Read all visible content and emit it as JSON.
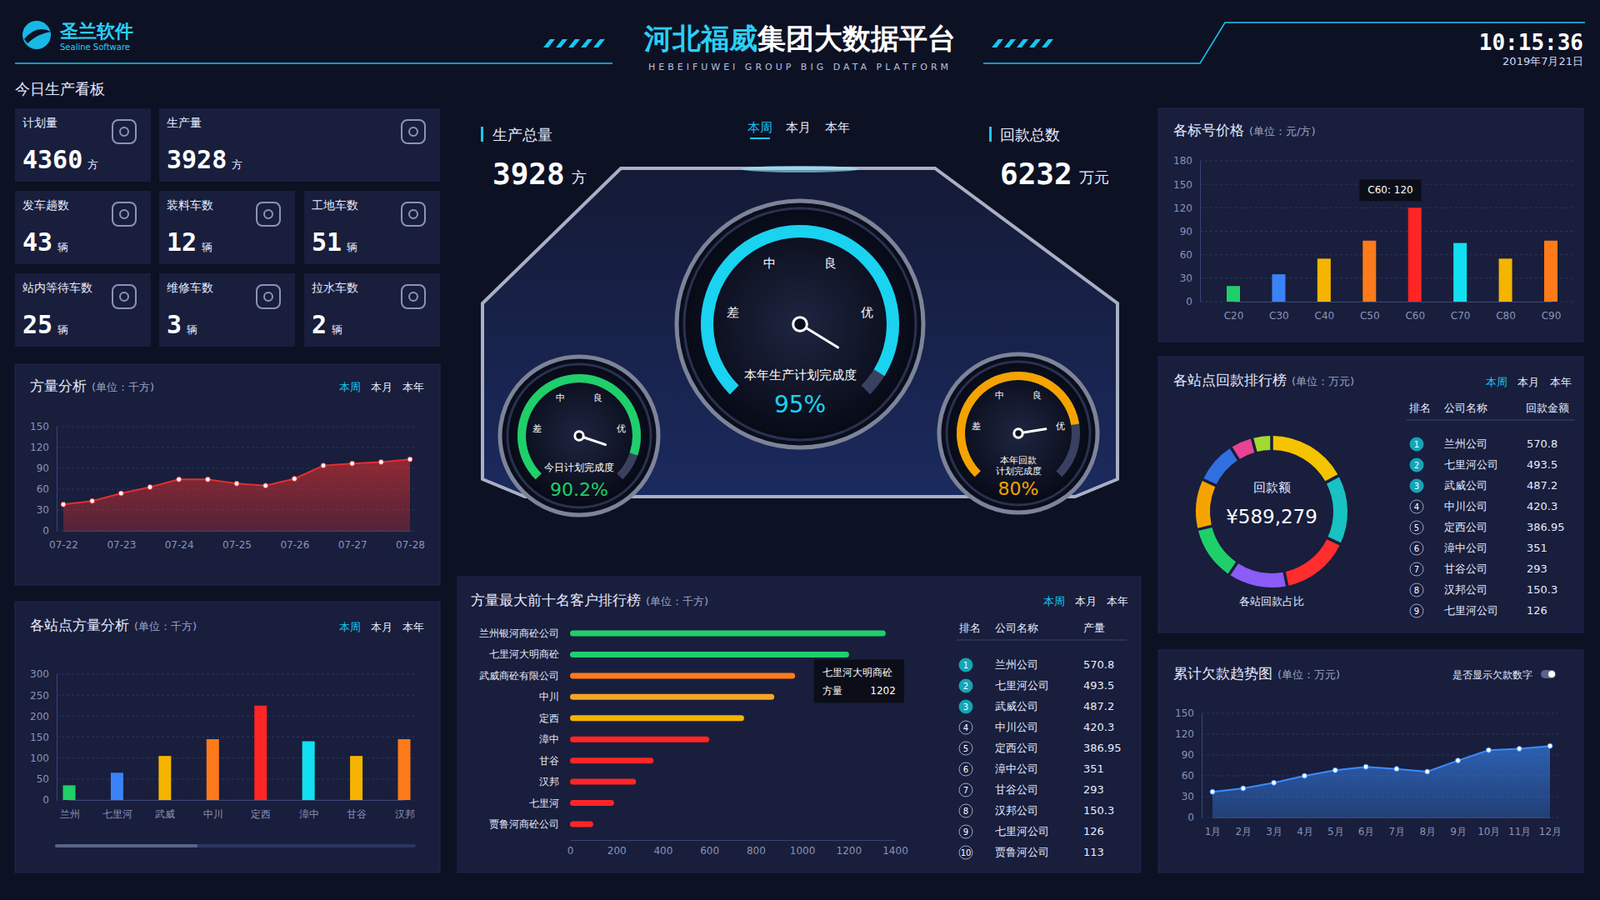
{
  "header": {
    "logo": "圣兰软件",
    "logo_en": "Sealine Software",
    "title": "河北福威集团大数据平台",
    "subtitle": "HEBEIFUWEI GROUP BIG DATA PLATFORM",
    "time": "10:15:36",
    "date": "2019年7月21日"
  },
  "tabs": [
    "本周",
    "本月",
    "本年"
  ],
  "today": {
    "title": "今日生产看板",
    "cards": [
      {
        "label": "计划量",
        "value": 4360,
        "unit": "方"
      },
      {
        "label": "生产量",
        "value": 3928,
        "unit": "方"
      },
      {
        "label": "发车趟数",
        "value": 43,
        "unit": "辆"
      },
      {
        "label": "装料车数",
        "value": 12,
        "unit": "辆"
      },
      {
        "label": "工地车数",
        "value": 51,
        "unit": "辆"
      },
      {
        "label": "站内等待车数",
        "value": 25,
        "unit": "辆"
      },
      {
        "label": "维修车数",
        "value": 3,
        "unit": "辆"
      },
      {
        "label": "拉水车数",
        "value": 2,
        "unit": "辆"
      }
    ]
  },
  "summary": [
    {
      "label": "生产总量",
      "value": 3928,
      "unit": "方"
    },
    {
      "label": "回款总数",
      "value": 6232,
      "unit": "万元"
    }
  ],
  "gauges": {
    "levels": [
      "差",
      "中",
      "良",
      "优"
    ],
    "ylim": [
      0,
      100
    ],
    "items": [
      {
        "label": "本年生产计划完成度",
        "value": 95,
        "value_label": "95%",
        "color": "#19d3f0"
      },
      {
        "label": "今日计划完成度",
        "value": 90.2,
        "value_label": "90.2%",
        "color": "#1fcf6a"
      },
      {
        "label": "本年回款计划完成度",
        "value": 80,
        "value_label": "80%",
        "color": "#f5a300"
      }
    ]
  },
  "chart_data": [
    {
      "type": "area",
      "title": "方量分析",
      "subtitle": "(单位：千方)",
      "categories": [
        "07-22",
        null,
        "07-23",
        null,
        "07-24",
        null,
        "07-25",
        null,
        "07-26",
        null,
        "07-27",
        null,
        "07-28"
      ],
      "values": [
        38,
        43,
        54,
        63,
        74,
        74,
        68,
        65,
        75,
        94,
        97,
        99,
        103
      ],
      "color": "#e0302e",
      "ylim": [
        0,
        150
      ],
      "yticks": [
        0,
        30,
        60,
        90,
        120,
        150
      ],
      "grid": true,
      "marker": "circle"
    },
    {
      "type": "bar",
      "title": "各站点方量分析",
      "subtitle": "(单位：千方)",
      "categories": [
        "兰州",
        "七里河",
        "武威",
        "中川",
        "定西",
        "漳中",
        "甘谷",
        "汉邦"
      ],
      "values": [
        35,
        65,
        105,
        145,
        225,
        140,
        105,
        145
      ],
      "colors": [
        "#1fcf6a",
        "#3b82f6",
        "#f5b400",
        "#ff7a1a",
        "#ff2525",
        "#12e0f0",
        "#f5b400",
        "#ff7a1a"
      ],
      "ylim": [
        0,
        300
      ],
      "yticks": [
        0,
        50,
        100,
        150,
        200,
        250,
        300
      ],
      "grid": true
    },
    {
      "type": "bar",
      "orientation": "horizontal",
      "title": "方量最大前十名客户排行榜",
      "subtitle": "(单位：千方)",
      "categories": [
        "兰州银河商砼公司",
        "七里河大明商砼",
        "武威商砼有限公司",
        "中川",
        "定西",
        "漳中",
        "甘谷",
        "汉邦",
        "七里河",
        "贾鲁河商砼公司"
      ],
      "values": [
        1360,
        1202,
        970,
        880,
        750,
        600,
        360,
        285,
        190,
        100
      ],
      "colors": [
        "#1fcf6a",
        "#1fcf6a",
        "#ff7a1a",
        "#f5a623",
        "#f5b400",
        "#ff2525",
        "#ff2525",
        "#ff2525",
        "#ff2525",
        "#ff2525"
      ],
      "xlim": [
        0,
        1400
      ],
      "xticks": [
        0,
        200,
        400,
        600,
        800,
        1000,
        1200,
        1400
      ],
      "grid": false,
      "tooltip": {
        "title": "七里河大明商砼",
        "label": "方量",
        "value": 1202
      },
      "table": {
        "columns": [
          "排名",
          "公司名称",
          "产量"
        ],
        "rows": [
          [
            1,
            "兰州公司",
            570.8
          ],
          [
            2,
            "七里河公司",
            493.5
          ],
          [
            3,
            "武威公司",
            487.2
          ],
          [
            4,
            "中川公司",
            420.3
          ],
          [
            5,
            "定西公司",
            386.95
          ],
          [
            6,
            "漳中公司",
            351
          ],
          [
            7,
            "甘谷公司",
            293
          ],
          [
            8,
            "汉邦公司",
            150.3
          ],
          [
            9,
            "七里河公司",
            126
          ],
          [
            10,
            "贾鲁河公司",
            113
          ]
        ]
      }
    },
    {
      "type": "bar",
      "title": "各标号价格",
      "subtitle": "(单位：元/方)",
      "categories": [
        "C20",
        "C30",
        "C40",
        "C50",
        "C60",
        "C70",
        "C80",
        "C90"
      ],
      "values": [
        20,
        35,
        55,
        78,
        120,
        75,
        55,
        78
      ],
      "colors": [
        "#1fcf6a",
        "#3b82f6",
        "#f5b400",
        "#ff7a1a",
        "#ff2525",
        "#12e0f0",
        "#f5b400",
        "#ff7a1a"
      ],
      "ylim": [
        0,
        180
      ],
      "yticks": [
        0,
        30,
        60,
        90,
        120,
        150,
        180
      ],
      "grid": true,
      "tooltip": "C60: 120"
    },
    {
      "type": "donut",
      "title": "各站点回款排行榜",
      "subtitle": "(单位：万元)",
      "center_label": "回款额",
      "total": {
        "value": 589279,
        "label": "¥589,279"
      },
      "caption": "各站回款占比",
      "colors": [
        "#f5c400",
        "#19c2c2",
        "#ff2d2d",
        "#8b5cf6",
        "#1fcf6a",
        "#f5a300",
        "#2f6fe0",
        "#e84393",
        "#a3d930"
      ],
      "table": {
        "columns": [
          "排名",
          "公司名称",
          "回款金额"
        ],
        "rows": [
          [
            1,
            "兰州公司",
            570.8
          ],
          [
            2,
            "七里河公司",
            493.5
          ],
          [
            3,
            "武威公司",
            487.2
          ],
          [
            4,
            "中川公司",
            420.3
          ],
          [
            5,
            "定西公司",
            386.95
          ],
          [
            6,
            "漳中公司",
            351
          ],
          [
            7,
            "甘谷公司",
            293
          ],
          [
            8,
            "汉邦公司",
            150.3
          ],
          [
            9,
            "七里河公司",
            126
          ]
        ]
      }
    },
    {
      "type": "area",
      "title": "累计欠款趋势图",
      "subtitle": "(单位：万元)",
      "toggle_label": "是否显示欠款数字",
      "categories": [
        "1月",
        "2月",
        "3月",
        "4月",
        "5月",
        "6月",
        "7月",
        "8月",
        "9月",
        "10月",
        "11月",
        "12月"
      ],
      "values": [
        37,
        42,
        50,
        60,
        68,
        73,
        70,
        66,
        82,
        97,
        99,
        103
      ],
      "color": "#3a8cff",
      "ylim": [
        0,
        150
      ],
      "yticks": [
        0,
        30,
        60,
        90,
        120,
        150
      ],
      "grid": true,
      "marker": "circle"
    }
  ]
}
